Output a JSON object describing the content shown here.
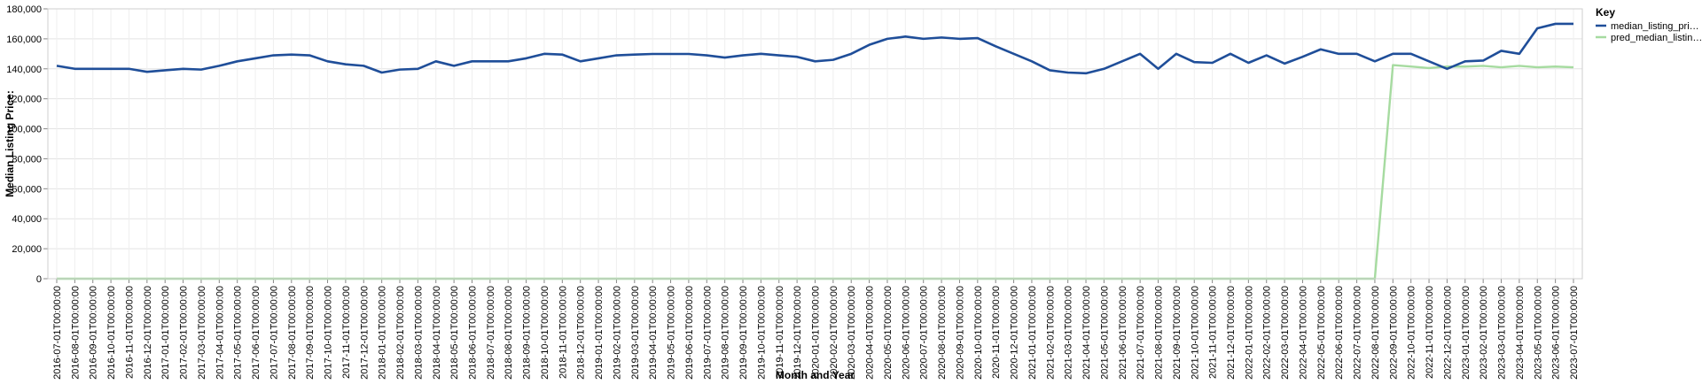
{
  "chart_data": {
    "type": "line",
    "xlabel": "Month and Year",
    "ylabel": "Median Listing Price:",
    "ylim": [
      0,
      180000
    ],
    "y_ticks": [
      "0",
      "20,000",
      "40,000",
      "60,000",
      "80,000",
      "100,000",
      "120,000",
      "140,000",
      "160,000",
      "180,000"
    ],
    "grid": true,
    "legend": {
      "title": "Key",
      "placement": "top-right"
    },
    "x": [
      "2016-07-01T00:00:00",
      "2016-08-01T00:00:00",
      "2016-09-01T00:00:00",
      "2016-10-01T00:00:00",
      "2016-11-01T00:00:00",
      "2016-12-01T00:00:00",
      "2017-01-01T00:00:00",
      "2017-02-01T00:00:00",
      "2017-03-01T00:00:00",
      "2017-04-01T00:00:00",
      "2017-05-01T00:00:00",
      "2017-06-01T00:00:00",
      "2017-07-01T00:00:00",
      "2017-08-01T00:00:00",
      "2017-09-01T00:00:00",
      "2017-10-01T00:00:00",
      "2017-11-01T00:00:00",
      "2017-12-01T00:00:00",
      "2018-01-01T00:00:00",
      "2018-02-01T00:00:00",
      "2018-03-01T00:00:00",
      "2018-04-01T00:00:00",
      "2018-05-01T00:00:00",
      "2018-06-01T00:00:00",
      "2018-07-01T00:00:00",
      "2018-08-01T00:00:00",
      "2018-09-01T00:00:00",
      "2018-10-01T00:00:00",
      "2018-11-01T00:00:00",
      "2018-12-01T00:00:00",
      "2019-01-01T00:00:00",
      "2019-02-01T00:00:00",
      "2019-03-01T00:00:00",
      "2019-04-01T00:00:00",
      "2019-05-01T00:00:00",
      "2019-06-01T00:00:00",
      "2019-07-01T00:00:00",
      "2019-08-01T00:00:00",
      "2019-09-01T00:00:00",
      "2019-10-01T00:00:00",
      "2019-11-01T00:00:00",
      "2019-12-01T00:00:00",
      "2020-01-01T00:00:00",
      "2020-02-01T00:00:00",
      "2020-03-01T00:00:00",
      "2020-04-01T00:00:00",
      "2020-05-01T00:00:00",
      "2020-06-01T00:00:00",
      "2020-07-01T00:00:00",
      "2020-08-01T00:00:00",
      "2020-09-01T00:00:00",
      "2020-10-01T00:00:00",
      "2020-11-01T00:00:00",
      "2020-12-01T00:00:00",
      "2021-01-01T00:00:00",
      "2021-02-01T00:00:00",
      "2021-03-01T00:00:00",
      "2021-04-01T00:00:00",
      "2021-05-01T00:00:00",
      "2021-06-01T00:00:00",
      "2021-07-01T00:00:00",
      "2021-08-01T00:00:00",
      "2021-09-01T00:00:00",
      "2021-10-01T00:00:00",
      "2021-11-01T00:00:00",
      "2021-12-01T00:00:00",
      "2022-01-01T00:00:00",
      "2022-02-01T00:00:00",
      "2022-03-01T00:00:00",
      "2022-04-01T00:00:00",
      "2022-05-01T00:00:00",
      "2022-06-01T00:00:00",
      "2022-07-01T00:00:00",
      "2022-08-01T00:00:00",
      "2022-09-01T00:00:00",
      "2022-10-01T00:00:00",
      "2022-11-01T00:00:00",
      "2022-12-01T00:00:00",
      "2023-01-01T00:00:00",
      "2023-02-01T00:00:00",
      "2023-03-01T00:00:00",
      "2023-04-01T00:00:00",
      "2023-05-01T00:00:00",
      "2023-06-01T00:00:00",
      "2023-07-01T00:00:00"
    ],
    "series": [
      {
        "name": "median_listing_pri…",
        "color": "#1f4e99",
        "values": [
          142000,
          140000,
          140000,
          140000,
          140000,
          138000,
          139000,
          140000,
          139500,
          142000,
          145000,
          147000,
          149000,
          149500,
          149000,
          145000,
          143000,
          142000,
          137500,
          139500,
          140000,
          145000,
          142000,
          145000,
          145000,
          145000,
          147000,
          150000,
          149500,
          145000,
          147000,
          149000,
          149500,
          149900,
          149900,
          149900,
          149000,
          147500,
          149000,
          150000,
          149000,
          148000,
          145000,
          146000,
          150000,
          156000,
          160000,
          161500,
          160000,
          160900,
          160000,
          160500,
          155000,
          150000,
          145000,
          139000,
          137500,
          137000,
          140000,
          145000,
          150000,
          140000,
          150000,
          144500,
          144000,
          150000,
          144000,
          149000,
          143500,
          148000,
          153000,
          150000,
          150000,
          145000,
          150000,
          150000,
          145000,
          140000,
          145000,
          145500,
          152000,
          150000,
          167000,
          170000,
          170000
        ],
        "style": "stroke-width:2.5"
      },
      {
        "name": "pred_median_listin…",
        "color": "#a6dba0",
        "values": [
          0,
          0,
          0,
          0,
          0,
          0,
          0,
          0,
          0,
          0,
          0,
          0,
          0,
          0,
          0,
          0,
          0,
          0,
          0,
          0,
          0,
          0,
          0,
          0,
          0,
          0,
          0,
          0,
          0,
          0,
          0,
          0,
          0,
          0,
          0,
          0,
          0,
          0,
          0,
          0,
          0,
          0,
          0,
          0,
          0,
          0,
          0,
          0,
          0,
          0,
          0,
          0,
          0,
          0,
          0,
          0,
          0,
          0,
          0,
          0,
          0,
          0,
          0,
          0,
          0,
          0,
          0,
          0,
          0,
          0,
          0,
          0,
          0,
          0,
          142500,
          141500,
          140500,
          141500,
          141500,
          142000,
          141000,
          142000,
          141000,
          141500,
          141000
        ]
      }
    ]
  }
}
